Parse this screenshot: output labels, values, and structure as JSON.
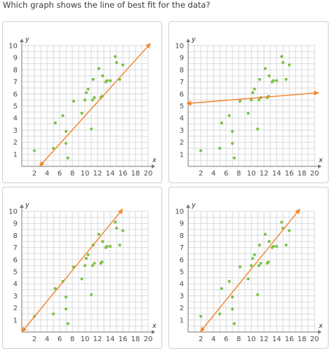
{
  "question": "Which graph shows the line of best fit for the data?",
  "colors": {
    "points": "#7cc242",
    "line": "#f2842a",
    "grid": "#d9d9d9",
    "axis": "#777777",
    "border": "#cfcfcf"
  },
  "chart_data": [
    {
      "type": "scatter",
      "title": "",
      "xlabel": "x",
      "ylabel": "y",
      "xlim": [
        0,
        20
      ],
      "ylim": [
        0,
        10
      ],
      "xticks": [
        2,
        4,
        6,
        8,
        10,
        12,
        14,
        16,
        18,
        20
      ],
      "yticks": [
        1,
        2,
        3,
        4,
        5,
        6,
        7,
        8,
        9,
        10
      ],
      "grid": true,
      "points": [
        [
          2,
          1.3
        ],
        [
          5,
          1.5
        ],
        [
          5.3,
          3.6
        ],
        [
          6.5,
          4.2
        ],
        [
          7,
          2.9
        ],
        [
          7,
          1.9
        ],
        [
          7.3,
          0.7
        ],
        [
          8.2,
          5.4
        ],
        [
          9.5,
          4.4
        ],
        [
          10,
          5.5
        ],
        [
          10.2,
          6.1
        ],
        [
          10.5,
          6.4
        ],
        [
          11,
          3.1
        ],
        [
          11.2,
          5.5
        ],
        [
          11.3,
          7.2
        ],
        [
          11.5,
          5.7
        ],
        [
          12.2,
          8.1
        ],
        [
          12.5,
          5.7
        ],
        [
          12.7,
          5.8
        ],
        [
          12.8,
          7.5
        ],
        [
          13.3,
          7.0
        ],
        [
          13.5,
          7.1
        ],
        [
          14,
          7.1
        ],
        [
          14.8,
          9.1
        ],
        [
          15,
          8.6
        ],
        [
          15.5,
          7.2
        ],
        [
          16,
          8.4
        ]
      ],
      "line": {
        "from": [
          2.8,
          0
        ],
        "to": [
          20.4,
          10.2
        ]
      }
    },
    {
      "type": "scatter",
      "title": "",
      "xlabel": "x",
      "ylabel": "y",
      "xlim": [
        0,
        20
      ],
      "ylim": [
        0,
        10
      ],
      "xticks": [
        2,
        4,
        6,
        8,
        10,
        12,
        14,
        16,
        18,
        20
      ],
      "yticks": [
        1,
        2,
        3,
        4,
        5,
        6,
        7,
        8,
        9,
        10
      ],
      "grid": true,
      "points": [
        [
          2,
          1.3
        ],
        [
          5,
          1.5
        ],
        [
          5.3,
          3.6
        ],
        [
          6.5,
          4.2
        ],
        [
          7,
          2.9
        ],
        [
          7,
          1.9
        ],
        [
          7.3,
          0.7
        ],
        [
          8.2,
          5.4
        ],
        [
          9.5,
          4.4
        ],
        [
          10,
          5.5
        ],
        [
          10.2,
          6.1
        ],
        [
          10.5,
          6.4
        ],
        [
          11,
          3.1
        ],
        [
          11.2,
          5.5
        ],
        [
          11.3,
          7.2
        ],
        [
          11.5,
          5.7
        ],
        [
          12.2,
          8.1
        ],
        [
          12.5,
          5.7
        ],
        [
          12.7,
          5.8
        ],
        [
          12.8,
          7.5
        ],
        [
          13.3,
          7.0
        ],
        [
          13.5,
          7.1
        ],
        [
          14,
          7.1
        ],
        [
          14.8,
          9.1
        ],
        [
          15,
          8.6
        ],
        [
          15.5,
          7.2
        ],
        [
          16,
          8.4
        ]
      ],
      "line": {
        "from": [
          -0.3,
          5.2
        ],
        "to": [
          20.7,
          6.1
        ]
      }
    },
    {
      "type": "scatter",
      "title": "",
      "xlabel": "x",
      "ylabel": "y",
      "xlim": [
        0,
        20
      ],
      "ylim": [
        0,
        10
      ],
      "xticks": [
        2,
        4,
        6,
        8,
        10,
        12,
        14,
        16,
        18,
        20
      ],
      "yticks": [
        1,
        2,
        3,
        4,
        5,
        6,
        7,
        8,
        9,
        10
      ],
      "grid": true,
      "points": [
        [
          2,
          1.3
        ],
        [
          5,
          1.5
        ],
        [
          5.3,
          3.6
        ],
        [
          6.5,
          4.2
        ],
        [
          7,
          2.9
        ],
        [
          7,
          1.9
        ],
        [
          7.3,
          0.7
        ],
        [
          8.2,
          5.4
        ],
        [
          9.5,
          4.4
        ],
        [
          10,
          5.5
        ],
        [
          10.2,
          6.1
        ],
        [
          10.5,
          6.4
        ],
        [
          11,
          3.1
        ],
        [
          11.2,
          5.5
        ],
        [
          11.3,
          7.2
        ],
        [
          11.5,
          5.7
        ],
        [
          12.2,
          8.1
        ],
        [
          12.5,
          5.7
        ],
        [
          12.7,
          5.8
        ],
        [
          12.8,
          7.5
        ],
        [
          13.3,
          7.0
        ],
        [
          13.5,
          7.1
        ],
        [
          14,
          7.1
        ],
        [
          14.8,
          9.1
        ],
        [
          15,
          8.6
        ],
        [
          15.5,
          7.2
        ],
        [
          16,
          8.4
        ]
      ],
      "line": {
        "from": [
          0,
          0
        ],
        "to": [
          16,
          10.2
        ]
      }
    },
    {
      "type": "scatter",
      "title": "",
      "xlabel": "x",
      "ylabel": "y",
      "xlim": [
        0,
        20
      ],
      "ylim": [
        0,
        10
      ],
      "xticks": [
        2,
        4,
        6,
        8,
        10,
        12,
        14,
        16,
        18,
        20
      ],
      "yticks": [
        1,
        2,
        3,
        4,
        5,
        6,
        7,
        8,
        9,
        10
      ],
      "grid": true,
      "points": [
        [
          2,
          1.3
        ],
        [
          5,
          1.5
        ],
        [
          5.3,
          3.6
        ],
        [
          6.5,
          4.2
        ],
        [
          7,
          2.9
        ],
        [
          7,
          1.9
        ],
        [
          7.3,
          0.7
        ],
        [
          8.2,
          5.4
        ],
        [
          9.5,
          4.4
        ],
        [
          10,
          5.5
        ],
        [
          10.2,
          6.1
        ],
        [
          10.5,
          6.4
        ],
        [
          11,
          3.1
        ],
        [
          11.2,
          5.5
        ],
        [
          11.3,
          7.2
        ],
        [
          11.5,
          5.7
        ],
        [
          12.2,
          8.1
        ],
        [
          12.5,
          5.7
        ],
        [
          12.7,
          5.8
        ],
        [
          12.8,
          7.5
        ],
        [
          13.3,
          7.0
        ],
        [
          13.5,
          7.1
        ],
        [
          14,
          7.1
        ],
        [
          14.8,
          9.1
        ],
        [
          15,
          8.6
        ],
        [
          15.5,
          7.2
        ],
        [
          16,
          8.4
        ]
      ],
      "line": {
        "from": [
          1.9,
          0
        ],
        "to": [
          17.7,
          10.2
        ]
      }
    }
  ]
}
